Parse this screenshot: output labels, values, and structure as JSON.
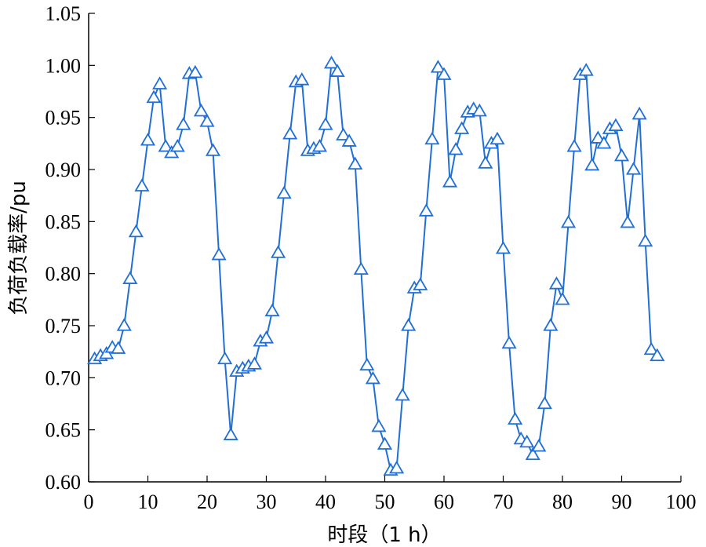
{
  "chart_data": {
    "type": "line",
    "xlabel": "时段（1 h）",
    "ylabel": "负荷负载率/pu",
    "xlim": [
      0,
      100
    ],
    "ylim": [
      0.6,
      1.05
    ],
    "xticks": [
      0,
      10,
      20,
      30,
      40,
      50,
      60,
      70,
      80,
      90,
      100
    ],
    "yticks": [
      0.6,
      0.65,
      0.7,
      0.75,
      0.8,
      0.85,
      0.9,
      0.95,
      1.0,
      1.05
    ],
    "ytick_labels": [
      "0.60",
      "0.65",
      "0.70",
      "0.75",
      "0.80",
      "0.85",
      "0.90",
      "0.95",
      "1.00",
      "1.05"
    ],
    "grid": false,
    "marker": "triangle-open",
    "line_color": "#1f6fd6",
    "x": [
      1,
      2,
      3,
      4,
      5,
      6,
      7,
      8,
      9,
      10,
      11,
      12,
      13,
      14,
      15,
      16,
      17,
      18,
      19,
      20,
      21,
      22,
      23,
      24,
      25,
      26,
      27,
      28,
      29,
      30,
      31,
      32,
      33,
      34,
      35,
      36,
      37,
      38,
      39,
      40,
      41,
      42,
      43,
      44,
      45,
      46,
      47,
      48,
      49,
      50,
      51,
      52,
      53,
      54,
      55,
      56,
      57,
      58,
      59,
      60,
      61,
      62,
      63,
      64,
      65,
      66,
      67,
      68,
      69,
      70,
      71,
      72,
      73,
      74,
      75,
      76,
      77,
      78,
      79,
      80,
      81,
      82,
      83,
      84,
      85,
      86,
      87,
      88,
      89,
      90,
      91,
      92,
      93,
      94,
      95,
      96
    ],
    "series": [
      {
        "values": [
          0.718,
          0.721,
          0.723,
          0.729,
          0.728,
          0.75,
          0.795,
          0.84,
          0.884,
          0.928,
          0.969,
          0.982,
          0.922,
          0.916,
          0.922,
          0.943,
          0.992,
          0.993,
          0.956,
          0.946,
          0.918,
          0.818,
          0.718,
          0.645,
          0.706,
          0.709,
          0.711,
          0.713,
          0.735,
          0.738,
          0.764,
          0.82,
          0.877,
          0.934,
          0.984,
          0.986,
          0.918,
          0.92,
          0.922,
          0.943,
          1.002,
          0.994,
          0.933,
          0.927,
          0.905,
          0.804,
          0.712,
          0.699,
          0.653,
          0.636,
          0.611,
          0.613,
          0.683,
          0.75,
          0.786,
          0.789,
          0.86,
          0.929,
          0.998,
          0.991,
          0.888,
          0.919,
          0.939,
          0.955,
          0.958,
          0.956,
          0.906,
          0.925,
          0.929,
          0.824,
          0.733,
          0.66,
          0.641,
          0.638,
          0.626,
          0.634,
          0.675,
          0.75,
          0.79,
          0.775,
          0.849,
          0.922,
          0.991,
          0.995,
          0.904,
          0.93,
          0.925,
          0.939,
          0.942,
          0.913,
          0.849,
          0.9,
          0.953,
          0.831,
          0.727,
          0.721
        ]
      }
    ]
  }
}
